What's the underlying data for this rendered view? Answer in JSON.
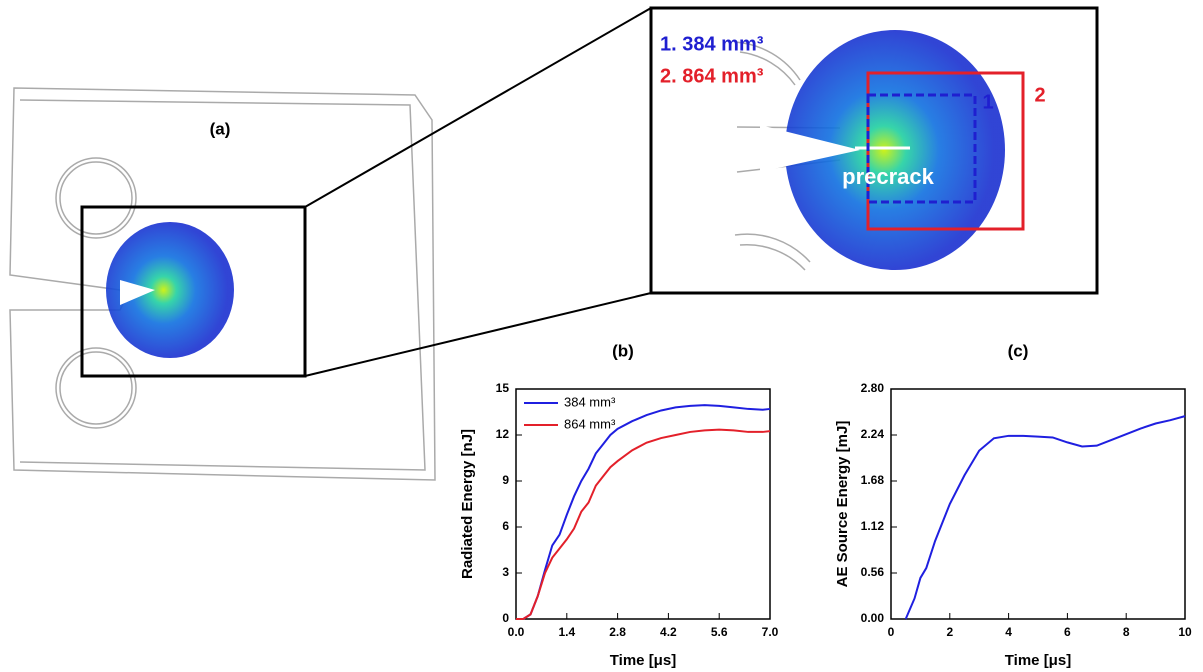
{
  "diagram": {
    "panel_a": "(a)",
    "volume_1": "1.  384 mm³",
    "volume_2": "2.  864 mm³",
    "box_1": "1",
    "box_2": "2",
    "precrack": "precrack"
  },
  "chart_data": [
    {
      "type": "line",
      "title": "(b)",
      "xlabel": "Time [μs]",
      "ylabel": "Radiated Energy [nJ]",
      "xlim": [
        0,
        7
      ],
      "xticks": [
        {
          "value": 0,
          "label": "0.0"
        },
        1.4,
        2.8,
        4.2,
        5.6,
        {
          "value": 7,
          "label": "7.0"
        }
      ],
      "ylim": [
        0,
        15
      ],
      "yticks": [
        0,
        3,
        6,
        9,
        12,
        15
      ],
      "legend": "upper left",
      "x": [
        0,
        0.2,
        0.4,
        0.6,
        0.8,
        1.0,
        1.2,
        1.4,
        1.6,
        1.8,
        2.0,
        2.2,
        2.4,
        2.6,
        2.8,
        3.2,
        3.6,
        4.0,
        4.4,
        4.8,
        5.2,
        5.6,
        6.0,
        6.4,
        6.8,
        7.0
      ],
      "series": [
        {
          "name": "384 mm³",
          "color": "#1f1fe0",
          "values": [
            0,
            0,
            0.3,
            1.5,
            3.2,
            4.8,
            5.5,
            6.8,
            8.0,
            9.0,
            9.8,
            10.8,
            11.4,
            12.0,
            12.4,
            12.9,
            13.3,
            13.6,
            13.8,
            13.9,
            13.95,
            13.9,
            13.8,
            13.7,
            13.65,
            13.7
          ]
        },
        {
          "name": "864 mm³",
          "color": "#e3202a",
          "values": [
            0,
            0,
            0.3,
            1.5,
            3.0,
            4.0,
            4.6,
            5.2,
            5.9,
            7.0,
            7.6,
            8.7,
            9.3,
            9.9,
            10.3,
            11.0,
            11.5,
            11.8,
            12.0,
            12.2,
            12.3,
            12.35,
            12.3,
            12.2,
            12.2,
            12.25
          ]
        }
      ]
    },
    {
      "type": "line",
      "title": "(c)",
      "xlabel": "Time [μs]",
      "ylabel": "AE Source Energy [mJ]",
      "xlim": [
        0,
        10
      ],
      "xticks": [
        0,
        2,
        4,
        6,
        8,
        10
      ],
      "ylim": [
        0,
        2.8
      ],
      "yticks": [
        {
          "value": 0,
          "label": "0.00"
        },
        {
          "value": 0.56,
          "label": "0.56"
        },
        {
          "value": 1.12,
          "label": "1.12"
        },
        {
          "value": 1.68,
          "label": "1.68"
        },
        {
          "value": 2.24,
          "label": "2.24"
        },
        {
          "value": 2.8,
          "label": "2.80"
        }
      ],
      "x": [
        0.5,
        0.8,
        1.0,
        1.2,
        1.5,
        2.0,
        2.5,
        3.0,
        3.5,
        4.0,
        4.5,
        5.0,
        5.5,
        6.0,
        6.5,
        7.0,
        7.5,
        8.0,
        8.5,
        9.0,
        9.5,
        10.0
      ],
      "values": [
        0,
        0.25,
        0.5,
        0.62,
        0.95,
        1.4,
        1.75,
        2.05,
        2.2,
        2.23,
        2.23,
        2.22,
        2.21,
        2.15,
        2.1,
        2.11,
        2.18,
        2.25,
        2.32,
        2.38,
        2.42,
        2.47
      ],
      "color": "#1f1fe0"
    }
  ]
}
